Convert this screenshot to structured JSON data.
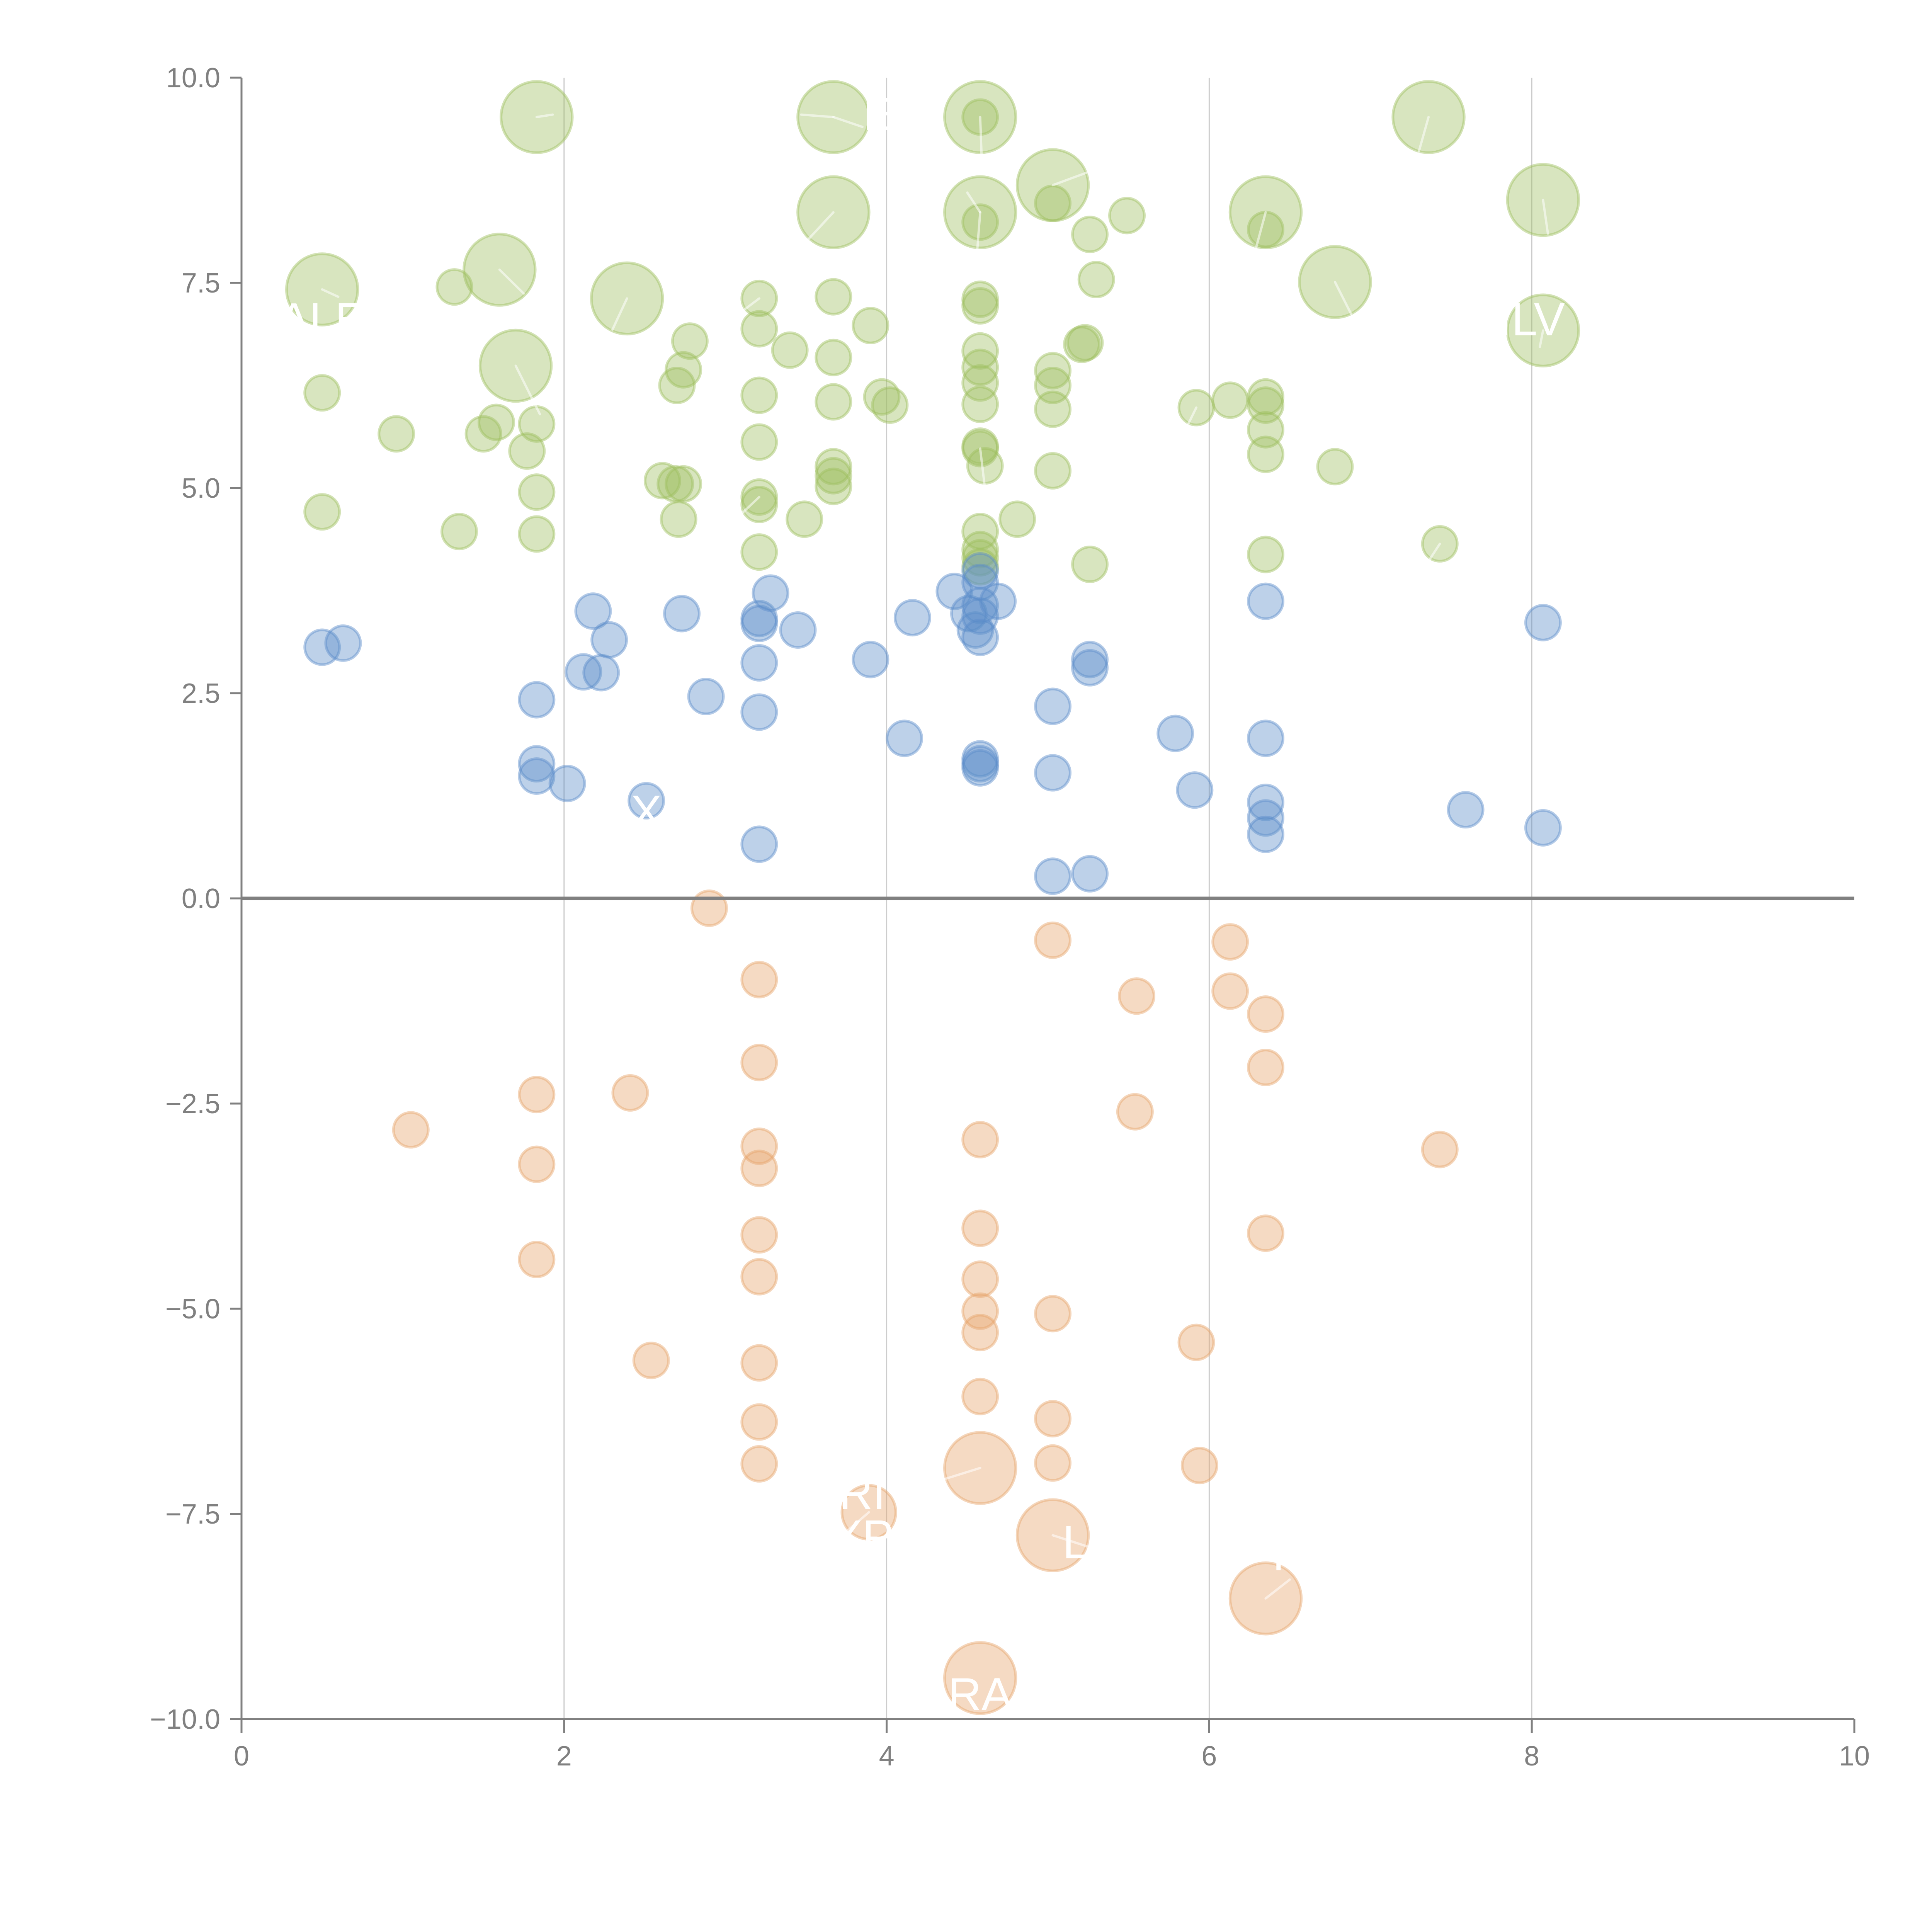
{
  "chart_data": {
    "type": "scatter",
    "title": "",
    "xlabel": "",
    "ylabel": "",
    "xlim": [
      0,
      10
    ],
    "ylim": [
      -10,
      10
    ],
    "x_ticks": [
      "0",
      "2",
      "4",
      "6",
      "8",
      "10"
    ],
    "y_ticks": [
      "10.0",
      "7.5",
      "5.0",
      "2.5",
      "0.0",
      "−2.5",
      "−5.0",
      "−7.5",
      "−10.0"
    ],
    "x_tick_values": [
      0,
      2,
      4,
      6,
      8,
      10
    ],
    "y_tick_values": [
      10,
      7.5,
      5,
      2.5,
      0,
      -2.5,
      -5,
      -7.5,
      -10
    ],
    "grid": "vertical",
    "reference_line_y": 0,
    "size_note": "third value of each point is bubble size (relative)",
    "colors": {
      "green": "#9dbf5e",
      "blue": "#5b8bc9",
      "orange": "#e6a36a",
      "axis": "#808080",
      "grid": "#cccccc",
      "label": "#ffffff"
    },
    "series": [
      {
        "name": "green",
        "color": "#9dbf5e",
        "points": [
          [
            1.83,
            9.52,
            4.2
          ],
          [
            3.67,
            9.52,
            4.2
          ],
          [
            4.58,
            9.52,
            4.2
          ],
          [
            7.36,
            9.52,
            4.2
          ],
          [
            5.03,
            8.69,
            4.2
          ],
          [
            3.67,
            8.36,
            4.2
          ],
          [
            4.58,
            8.36,
            4.2
          ],
          [
            6.35,
            8.36,
            4.2
          ],
          [
            8.07,
            8.51,
            4.2
          ],
          [
            0.5,
            7.42,
            4.2
          ],
          [
            1.6,
            7.66,
            4.2
          ],
          [
            2.39,
            7.31,
            4.2
          ],
          [
            6.78,
            7.51,
            4.2
          ],
          [
            1.7,
            6.49,
            4.2
          ],
          [
            8.07,
            6.92,
            4.2
          ],
          [
            1.32,
            7.45,
            1
          ],
          [
            0.5,
            6.16,
            1
          ],
          [
            0.96,
            5.66,
            1
          ],
          [
            1.5,
            5.66,
            1
          ],
          [
            1.58,
            5.8,
            1
          ],
          [
            1.77,
            5.45,
            1
          ],
          [
            1.83,
            5.78,
            1
          ],
          [
            0.5,
            4.71,
            1
          ],
          [
            1.35,
            4.47,
            1
          ],
          [
            1.83,
            4.95,
            1
          ],
          [
            1.83,
            4.44,
            1
          ],
          [
            2.61,
            5.09,
            1
          ],
          [
            2.69,
            5.05,
            1
          ],
          [
            2.74,
            5.05,
            1
          ],
          [
            2.71,
            4.62,
            1
          ],
          [
            2.7,
            6.25,
            1
          ],
          [
            2.74,
            6.44,
            1
          ],
          [
            2.78,
            6.79,
            1
          ],
          [
            3.21,
            7.31,
            1
          ],
          [
            3.21,
            6.94,
            1
          ],
          [
            3.21,
            6.13,
            1
          ],
          [
            3.21,
            5.56,
            1
          ],
          [
            3.21,
            4.89,
            1
          ],
          [
            3.21,
            4.8,
            1
          ],
          [
            3.21,
            4.22,
            1
          ],
          [
            3.4,
            6.68,
            1
          ],
          [
            3.49,
            4.62,
            1
          ],
          [
            3.67,
            7.33,
            1
          ],
          [
            3.67,
            6.59,
            1
          ],
          [
            3.67,
            6.05,
            1
          ],
          [
            3.67,
            5.26,
            1
          ],
          [
            3.67,
            5.15,
            1
          ],
          [
            3.67,
            5.02,
            1
          ],
          [
            3.9,
            6.98,
            1
          ],
          [
            3.97,
            6.11,
            1
          ],
          [
            4.02,
            6.01,
            1
          ],
          [
            4.58,
            9.52,
            1
          ],
          [
            4.58,
            8.24,
            1
          ],
          [
            4.58,
            7.3,
            1
          ],
          [
            4.58,
            7.22,
            1
          ],
          [
            4.58,
            6.67,
            1
          ],
          [
            4.58,
            6.47,
            1
          ],
          [
            4.58,
            6.28,
            1
          ],
          [
            4.58,
            6.02,
            1
          ],
          [
            4.58,
            5.51,
            1
          ],
          [
            4.58,
            5.48,
            1
          ],
          [
            4.61,
            5.27,
            1
          ],
          [
            4.58,
            4.47,
            1
          ],
          [
            4.58,
            4.25,
            1
          ],
          [
            4.58,
            4.15,
            1
          ],
          [
            4.58,
            4.04,
            1
          ],
          [
            4.81,
            4.62,
            1
          ],
          [
            5.03,
            8.47,
            1
          ],
          [
            5.03,
            6.43,
            1
          ],
          [
            5.03,
            6.25,
            1
          ],
          [
            5.03,
            5.96,
            1
          ],
          [
            5.03,
            5.21,
            1
          ],
          [
            5.23,
            6.77,
            1
          ],
          [
            5.26,
            8.09,
            1
          ],
          [
            5.26,
            4.07,
            1
          ],
          [
            5.3,
            7.54,
            1
          ],
          [
            5.49,
            8.32,
            1
          ],
          [
            5.92,
            5.98,
            1
          ],
          [
            6.13,
            6.07,
            1
          ],
          [
            6.35,
            8.15,
            1
          ],
          [
            6.35,
            6.11,
            1
          ],
          [
            6.35,
            6.01,
            1
          ],
          [
            6.35,
            5.71,
            1
          ],
          [
            6.35,
            5.41,
            1
          ],
          [
            6.35,
            4.19,
            1
          ],
          [
            6.78,
            5.26,
            1
          ],
          [
            7.43,
            4.32,
            1
          ],
          [
            5.21,
            6.75,
            1
          ]
        ]
      },
      {
        "name": "blue",
        "color": "#5b8bc9",
        "points": [
          [
            0.5,
            3.06,
            1
          ],
          [
            0.63,
            3.11,
            1
          ],
          [
            1.83,
            2.42,
            1
          ],
          [
            1.83,
            1.64,
            1
          ],
          [
            1.83,
            1.49,
            1
          ],
          [
            2.02,
            1.4,
            1
          ],
          [
            2.12,
            2.76,
            1
          ],
          [
            2.18,
            3.5,
            1
          ],
          [
            2.23,
            2.75,
            1
          ],
          [
            2.28,
            3.15,
            1
          ],
          [
            2.51,
            1.19,
            1
          ],
          [
            2.73,
            3.47,
            1
          ],
          [
            2.88,
            2.46,
            1
          ],
          [
            3.21,
            3.41,
            1
          ],
          [
            3.21,
            3.35,
            1
          ],
          [
            3.21,
            2.87,
            1
          ],
          [
            3.21,
            2.27,
            1
          ],
          [
            3.21,
            0.66,
            1
          ],
          [
            3.28,
            3.72,
            1
          ],
          [
            3.45,
            3.27,
            1
          ],
          [
            3.9,
            2.91,
            1
          ],
          [
            4.11,
            1.95,
            1
          ],
          [
            4.16,
            3.42,
            1
          ],
          [
            4.42,
            3.74,
            1
          ],
          [
            4.51,
            3.47,
            1
          ],
          [
            4.55,
            3.27,
            1
          ],
          [
            4.58,
            3.99,
            1
          ],
          [
            4.58,
            3.85,
            1
          ],
          [
            4.58,
            3.57,
            1
          ],
          [
            4.58,
            3.44,
            1
          ],
          [
            4.58,
            3.18,
            1
          ],
          [
            4.58,
            1.7,
            1
          ],
          [
            4.58,
            1.64,
            1
          ],
          [
            4.58,
            1.59,
            1
          ],
          [
            4.69,
            3.62,
            1
          ],
          [
            5.03,
            2.34,
            1
          ],
          [
            5.03,
            1.53,
            1
          ],
          [
            5.03,
            0.27,
            1
          ],
          [
            5.26,
            2.91,
            1
          ],
          [
            5.26,
            2.81,
            1
          ],
          [
            5.26,
            0.3,
            1
          ],
          [
            5.79,
            2.01,
            1
          ],
          [
            5.91,
            1.32,
            1
          ],
          [
            6.35,
            3.62,
            1
          ],
          [
            6.35,
            1.95,
            1
          ],
          [
            6.35,
            1.17,
            1
          ],
          [
            6.35,
            0.98,
            1
          ],
          [
            6.35,
            0.78,
            1
          ],
          [
            7.59,
            1.08,
            1
          ],
          [
            8.07,
            3.36,
            1
          ],
          [
            8.07,
            0.86,
            1
          ]
        ]
      },
      {
        "name": "orange",
        "color": "#e6a36a",
        "points": [
          [
            1.05,
            -2.82,
            1
          ],
          [
            1.83,
            -2.39,
            1
          ],
          [
            1.83,
            -3.24,
            1
          ],
          [
            1.83,
            -4.4,
            1
          ],
          [
            2.41,
            -2.37,
            1
          ],
          [
            2.54,
            -5.63,
            1
          ],
          [
            2.9,
            -0.12,
            1
          ],
          [
            3.21,
            -0.99,
            1
          ],
          [
            3.21,
            -2.0,
            1
          ],
          [
            3.21,
            -3.02,
            1
          ],
          [
            3.21,
            -3.29,
            1
          ],
          [
            3.21,
            -4.1,
            1
          ],
          [
            3.21,
            -4.61,
            1
          ],
          [
            3.21,
            -5.66,
            1
          ],
          [
            3.21,
            -6.38,
            1
          ],
          [
            3.21,
            -6.89,
            1
          ],
          [
            4.58,
            -2.94,
            1
          ],
          [
            4.58,
            -4.02,
            1
          ],
          [
            4.58,
            -4.64,
            1
          ],
          [
            4.58,
            -5.03,
            1
          ],
          [
            4.58,
            -5.29,
            1
          ],
          [
            4.58,
            -6.07,
            1
          ],
          [
            5.03,
            -0.51,
            1
          ],
          [
            5.03,
            -5.06,
            1
          ],
          [
            5.03,
            -6.34,
            1
          ],
          [
            5.03,
            -6.88,
            1
          ],
          [
            5.54,
            -2.6,
            1
          ],
          [
            5.55,
            -1.19,
            1
          ],
          [
            5.92,
            -5.41,
            1
          ],
          [
            5.94,
            -6.91,
            1
          ],
          [
            6.13,
            -0.53,
            1
          ],
          [
            6.13,
            -1.13,
            1
          ],
          [
            6.35,
            -1.41,
            1
          ],
          [
            6.35,
            -2.06,
            1
          ],
          [
            6.35,
            -4.08,
            1
          ],
          [
            7.43,
            -3.06,
            1
          ],
          [
            3.89,
            -7.48,
            2.4
          ],
          [
            4.58,
            -6.94,
            4.2
          ],
          [
            5.03,
            -7.76,
            4.2
          ],
          [
            6.35,
            -8.53,
            4.2
          ],
          [
            4.58,
            -9.5,
            4.2
          ]
        ]
      }
    ],
    "leader_lines": [
      [
        1.83,
        9.52,
        1.93,
        9.55
      ],
      [
        3.67,
        9.52,
        3.85,
        9.4
      ],
      [
        3.67,
        9.52,
        3.47,
        9.55
      ],
      [
        4.58,
        9.52,
        4.59,
        8.98
      ],
      [
        7.36,
        9.52,
        7.3,
        9.1
      ],
      [
        5.03,
        8.69,
        5.25,
        8.85
      ],
      [
        3.67,
        8.36,
        3.5,
        8.0
      ],
      [
        4.58,
        8.36,
        4.5,
        8.6
      ],
      [
        4.58,
        8.36,
        4.55,
        7.6
      ],
      [
        6.35,
        8.36,
        6.28,
        7.85
      ],
      [
        8.07,
        8.51,
        8.1,
        8.1
      ],
      [
        0.5,
        7.42,
        0.6,
        7.33
      ],
      [
        1.6,
        7.66,
        1.75,
        7.37
      ],
      [
        2.39,
        7.31,
        2.3,
        6.93
      ],
      [
        6.78,
        7.51,
        6.88,
        7.12
      ],
      [
        1.7,
        6.49,
        1.85,
        5.9
      ],
      [
        8.07,
        6.92,
        8.05,
        6.72
      ],
      [
        3.21,
        7.31,
        3.0,
        7.0
      ],
      [
        3.21,
        4.89,
        3.0,
        4.5
      ],
      [
        4.58,
        5.48,
        4.61,
        4.99
      ],
      [
        7.43,
        4.32,
        7.35,
        4.08
      ],
      [
        5.92,
        5.98,
        5.85,
        5.7
      ],
      [
        4.58,
        -6.94,
        4.32,
        -7.1
      ],
      [
        3.89,
        -7.48,
        3.7,
        -7.8
      ],
      [
        5.03,
        -7.76,
        5.25,
        -7.9
      ],
      [
        6.35,
        -8.53,
        6.5,
        -8.3
      ]
    ],
    "point_labels": [
      {
        "text": "ALE",
        "x": 0.5,
        "y": 7.05
      },
      {
        "text": "E",
        "x": 3.95,
        "y": 9.55
      },
      {
        "text": "ILV",
        "x": 8.0,
        "y": 7.05
      },
      {
        "text": "X",
        "x": 2.51,
        "y": 1.05
      },
      {
        "text": "RI",
        "x": 3.85,
        "y": -7.25
      },
      {
        "text": "XP",
        "x": 3.85,
        "y": -7.78
      },
      {
        "text": "L",
        "x": 5.17,
        "y": -7.85
      },
      {
        "text": "I",
        "x": 6.43,
        "y": -8.0
      },
      {
        "text": "RA",
        "x": 4.58,
        "y": -9.7
      }
    ]
  }
}
